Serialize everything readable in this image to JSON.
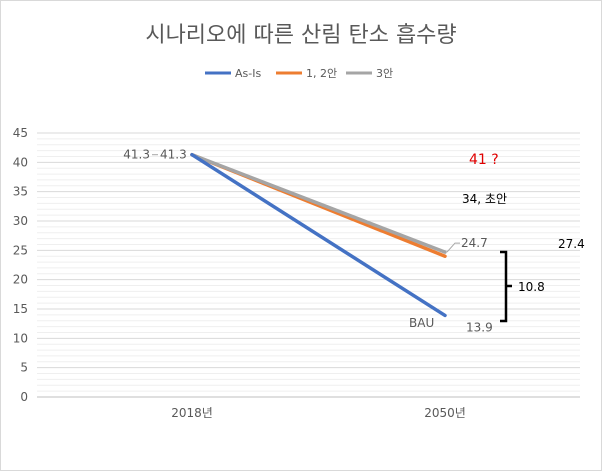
{
  "chart_data": {
    "type": "line",
    "title": "시나리오에 따른  산림 탄소 흡수량",
    "categories": [
      "2018년",
      "2050년"
    ],
    "ylim": [
      0,
      45
    ],
    "yticks": [
      0,
      5,
      10,
      15,
      20,
      25,
      30,
      35,
      40,
      45
    ],
    "grid": true,
    "legend_position": "top",
    "series": [
      {
        "name": "As-Is",
        "color": "#4472c4",
        "values": [
          41.3,
          13.9
        ]
      },
      {
        "name": "1, 2안",
        "color": "#ed7d31",
        "values": [
          41.3,
          24.0
        ]
      },
      {
        "name": "3안",
        "color": "#a5a5a5",
        "values": [
          41.3,
          24.7
        ]
      }
    ],
    "data_labels": [
      "41.3",
      "41.3",
      "24.7",
      "13.9"
    ],
    "annotations": {
      "bau": "BAU",
      "red_target": "41 ?",
      "first_draft": "34, 초안",
      "gap": "10.8",
      "side_value": "27.4"
    }
  }
}
